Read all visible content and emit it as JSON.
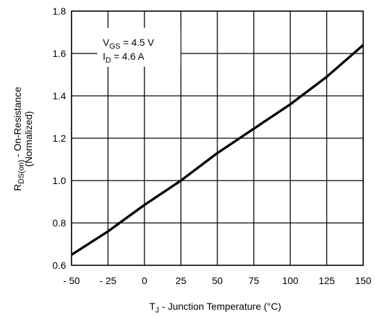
{
  "chart_data": {
    "type": "line",
    "title": "",
    "xlabel": {
      "main": "T",
      "sub": "J",
      "rest": " - Junction Temperature (°C)"
    },
    "ylabel": {
      "line1_main": "R",
      "line1_sub": "DS(on)",
      "line1_rest": " - On-Resistance",
      "line2": "(Normalized)"
    },
    "xlim": [
      -50,
      150
    ],
    "ylim": [
      0.6,
      1.8
    ],
    "x_ticks": [
      -50,
      -25,
      0,
      25,
      50,
      75,
      100,
      125,
      150
    ],
    "x_tick_labels": [
      "- 50",
      "- 25",
      "0",
      "25",
      "50",
      "75",
      "100",
      "125",
      "150"
    ],
    "y_ticks": [
      0.6,
      0.8,
      1.0,
      1.2,
      1.4,
      1.6,
      1.8
    ],
    "y_tick_labels": [
      "0.6",
      "0.8",
      "1.0",
      "1.2",
      "1.4",
      "1.6",
      "1.8"
    ],
    "grid": true,
    "series": [
      {
        "x": [
          -50,
          -25,
          0,
          25,
          50,
          75,
          100,
          125,
          150
        ],
        "y": [
          0.65,
          0.76,
          0.885,
          1.0,
          1.13,
          1.245,
          1.36,
          1.49,
          1.64
        ]
      }
    ],
    "annotations": {
      "vgs": {
        "main": "V",
        "sub": "GS",
        "rest": " = 4.5 V"
      },
      "id": {
        "main": "I",
        "sub": "D",
        "rest": " = 4.6 A"
      }
    },
    "colors": {
      "line": "#000000",
      "grid": "#000000"
    }
  }
}
